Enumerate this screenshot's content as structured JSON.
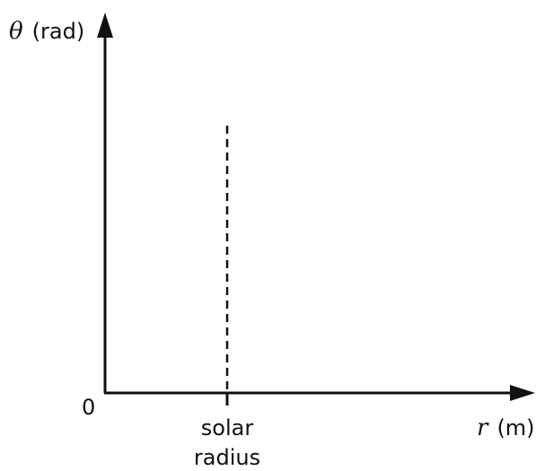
{
  "axes": {
    "y_symbol": "θ",
    "y_unit": "(rad)",
    "x_symbol": "r",
    "x_unit": "(m)",
    "origin": "0"
  },
  "marker": {
    "line1": "solar",
    "line2": "radius",
    "style": "dashed"
  },
  "colors": {
    "ink": "#111111",
    "background": "#ffffff"
  }
}
